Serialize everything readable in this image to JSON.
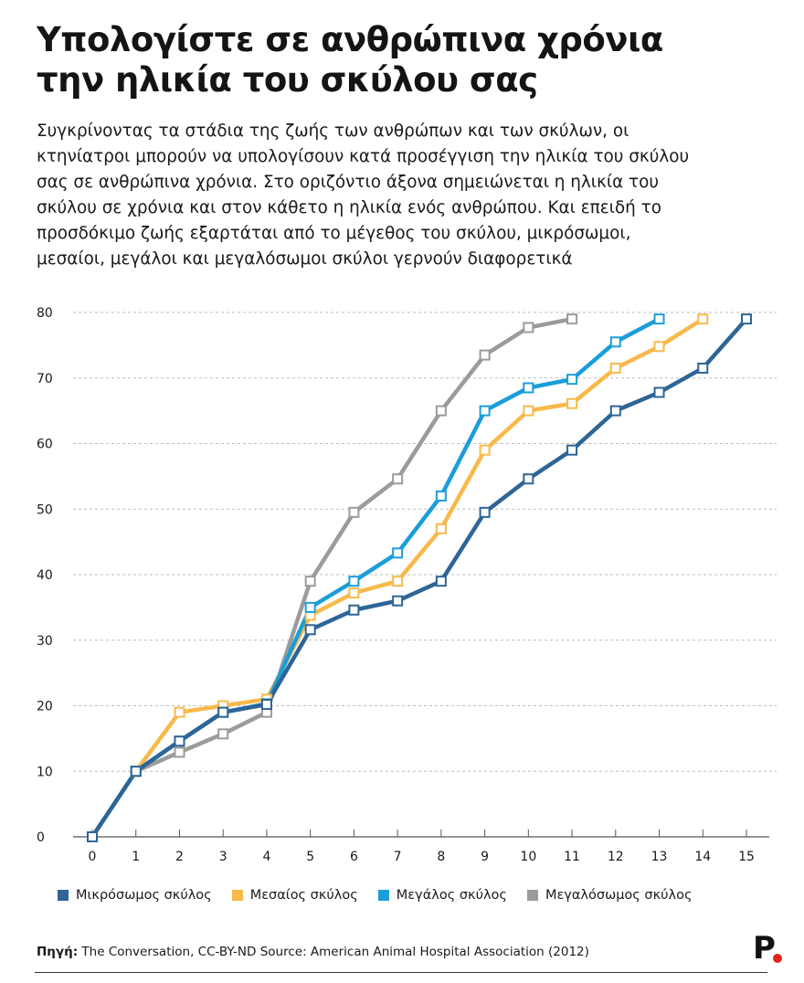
{
  "header": {
    "title_line1": "Υπολογίστε σε ανθρώπινα χρόνια",
    "title_line2": "την ηλικία του σκύλου σας",
    "subtitle_lines": [
      "Συγκρίνοντας τα στάδια της ζωής των ανθρώπων και των σκύλων, οι",
      "κτηνίατροι μπορούν να υπολογίσουν κατά προσέγγιση την ηλικία του σκύλου",
      "σας σε ανθρώπινα χρόνια. Στο οριζόντιο άξονα σημειώνεται η ηλικία του",
      "σκύλου σε χρόνια και στον κάθετο η ηλικία ενός ανθρώπου. Και επειδή το",
      "προσδόκιμο ζωής εξαρτάται από το μέγεθος του σκύλου, μικρόσωμοι,",
      "μεσαίοι, μεγάλοι και μεγαλόσωμοι σκύλοι γερνούν διαφορετικά"
    ]
  },
  "chart_data": {
    "type": "line",
    "x": [
      0,
      1,
      2,
      3,
      4,
      5,
      6,
      7,
      8,
      9,
      10,
      11,
      12,
      13,
      14,
      15
    ],
    "xlim": [
      0,
      15
    ],
    "ylim": [
      0,
      80
    ],
    "yticks": [
      0,
      10,
      20,
      30,
      40,
      50,
      60,
      70,
      80
    ],
    "grid": "horizontal dashed",
    "legend_position": "bottom",
    "series": [
      {
        "name": "Μεγαλόσωμος σκύλος",
        "color": "#9b9b9b",
        "points": [
          [
            0,
            0
          ],
          [
            1,
            10
          ],
          [
            2,
            12.9
          ],
          [
            3,
            15.7
          ],
          [
            4,
            19
          ],
          [
            5,
            39
          ],
          [
            6,
            49.5
          ],
          [
            7,
            54.6
          ],
          [
            8,
            65
          ],
          [
            9,
            73.5
          ],
          [
            10,
            77.7
          ],
          [
            11,
            79
          ]
        ]
      },
      {
        "name": "Μεσαίος σκύλος",
        "color": "#f8b94a",
        "points": [
          [
            0,
            0
          ],
          [
            1,
            10
          ],
          [
            2,
            19
          ],
          [
            3,
            20
          ],
          [
            4,
            21
          ],
          [
            5,
            33.8
          ],
          [
            6,
            37.2
          ],
          [
            7,
            39
          ],
          [
            8,
            47
          ],
          [
            9,
            59
          ],
          [
            10,
            65
          ],
          [
            11,
            66.1
          ],
          [
            12,
            71.5
          ],
          [
            13,
            74.8
          ],
          [
            14,
            79
          ]
        ]
      },
      {
        "name": "Μεγάλος σκύλος",
        "color": "#1a9ed9",
        "points": [
          [
            0,
            0
          ],
          [
            1,
            10
          ],
          [
            2,
            14.6
          ],
          [
            3,
            19
          ],
          [
            4,
            20.3
          ],
          [
            5,
            35
          ],
          [
            6,
            39
          ],
          [
            7,
            43.3
          ],
          [
            8,
            52
          ],
          [
            9,
            65
          ],
          [
            10,
            68.5
          ],
          [
            11,
            69.8
          ],
          [
            12,
            75.5
          ],
          [
            13,
            79
          ]
        ]
      },
      {
        "name": "Μικρόσωμος σκύλος",
        "color": "#2e6596",
        "points": [
          [
            0,
            0
          ],
          [
            1,
            10
          ],
          [
            2,
            14.6
          ],
          [
            3,
            19
          ],
          [
            4,
            20.2
          ],
          [
            5,
            31.6
          ],
          [
            6,
            34.6
          ],
          [
            7,
            36
          ],
          [
            8,
            39
          ],
          [
            9,
            49.5
          ],
          [
            10,
            54.6
          ],
          [
            11,
            59
          ],
          [
            12,
            65
          ],
          [
            13,
            67.8
          ],
          [
            14,
            71.5
          ],
          [
            15,
            79
          ]
        ]
      }
    ]
  },
  "legend": [
    {
      "label": "Μικρόσωμος σκύλος",
      "color": "#2e6596"
    },
    {
      "label": "Μεσαίος σκύλος",
      "color": "#f8b94a"
    },
    {
      "label": "Μεγάλος σκύλος",
      "color": "#1a9ed9"
    },
    {
      "label": "Μεγαλόσωμος σκύλος",
      "color": "#9b9b9b"
    }
  ],
  "footer": {
    "source_label": "Πηγή:",
    "source_text": " The Conversation, CC-BY-ND Source: American Animal Hospital Association (2012)",
    "logo_letter": "P"
  }
}
